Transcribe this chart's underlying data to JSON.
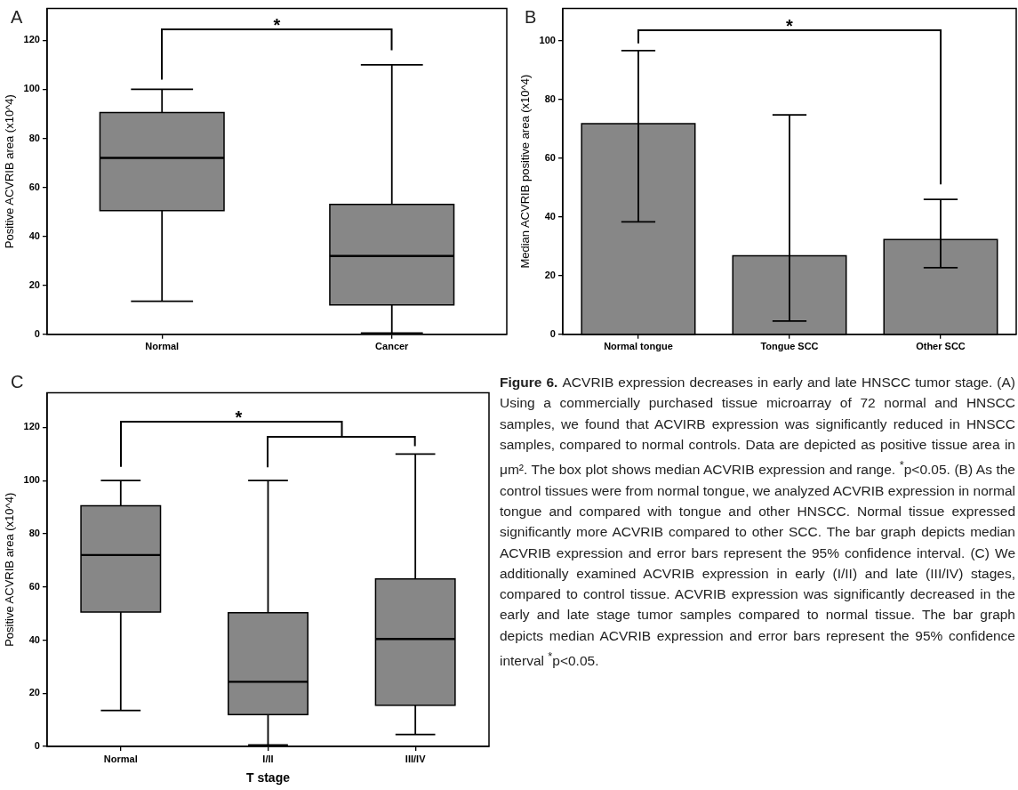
{
  "chart_data": [
    {
      "type": "box",
      "title": "A",
      "categories": [
        "Normal",
        "Cancer"
      ],
      "color": "#878787",
      "ylabel": "Positive ACVRIB area (x10^4)",
      "ylim": [
        0,
        133
      ],
      "yticks": [
        0,
        20,
        40,
        60,
        80,
        100,
        120
      ],
      "annotations": [
        "*"
      ],
      "boxes": [
        {
          "low": 13.5,
          "q1": 50.5,
          "median": 72,
          "q3": 90.5,
          "high": 100
        },
        {
          "low": 0.5,
          "q1": 12,
          "median": 32,
          "q3": 53,
          "high": 110
        }
      ]
    },
    {
      "type": "bar",
      "title": "B",
      "categories": [
        "Normal tongue",
        "Tongue SCC",
        "Other SCC"
      ],
      "values": [
        71.8,
        26.8,
        32.3
      ],
      "errors": [
        [
          38.3,
          96.7
        ],
        [
          4.5,
          74.8
        ],
        [
          22.7,
          46
        ]
      ],
      "color": "#878787",
      "ylabel": "Median ACVRIB positive area (x10^4)",
      "ylim": [
        0,
        111
      ],
      "yticks": [
        0,
        20,
        40,
        60,
        80,
        100
      ],
      "annotations": [
        "*"
      ]
    },
    {
      "type": "box",
      "title": "C",
      "categories": [
        "Normal",
        "I/II",
        "III/IV"
      ],
      "color": "#878787",
      "xlabel": "T stage",
      "ylabel": "Positive ACVRIB area (x10^4)",
      "ylim": [
        0,
        133
      ],
      "yticks": [
        0,
        20,
        40,
        60,
        80,
        100,
        120
      ],
      "annotations": [
        "*"
      ],
      "boxes": [
        {
          "low": 13.5,
          "q1": 50.5,
          "median": 72,
          "q3": 90.5,
          "high": 100
        },
        {
          "low": 0.5,
          "q1": 12,
          "median": 24.3,
          "q3": 50.3,
          "high": 100
        },
        {
          "low": 4.5,
          "q1": 15.5,
          "median": 40.4,
          "q3": 63,
          "high": 110
        }
      ]
    },
    {
      "type": "other",
      "title": "Figure 6.",
      "annotations": [
        "ACVRIB expression decreases in early and late HNSCC tumor stage. (A) Using a commercially purchased tissue microarray of 72 normal and HNSCC samples, we found that ACVIRB expression was significantly reduced in HNSCC samples, compared to normal controls. Data are depicted as positive tissue area in μm². The box plot shows median ACVRIB expression and range. $^{*}$p<0.05. (B) As the control tissues were from normal tongue, we analyzed ACVRIB expression in normal tongue and compared with tongue and other HNSCC. Normal tissue expressed significantly more ACVRIB compared to other SCC. The bar graph depicts median ACVRIB expression and error bars represent the 95% confidence interval. (C) We additionally examined ACVRIB expression in early (I/II) and late (III/IV) stages, compared to control tissue. ACVRIB expression was significantly decreased in the early and late stage tumor samples compared to normal tissue. The bar graph depicts median ACVRIB expression and error bars represent the 95% confidence interval $^{*}$p<0.05."
      ]
    }
  ]
}
